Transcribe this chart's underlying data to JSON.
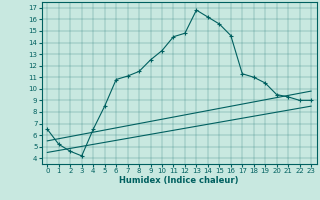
{
  "xlabel": "Humidex (Indice chaleur)",
  "background_color": "#c8e8e0",
  "line_color": "#006060",
  "xlim": [
    -0.5,
    23.5
  ],
  "ylim": [
    3.5,
    17.5
  ],
  "xticks": [
    0,
    1,
    2,
    3,
    4,
    5,
    6,
    7,
    8,
    9,
    10,
    11,
    12,
    13,
    14,
    15,
    16,
    17,
    18,
    19,
    20,
    21,
    22,
    23
  ],
  "yticks": [
    4,
    5,
    6,
    7,
    8,
    9,
    10,
    11,
    12,
    13,
    14,
    15,
    16,
    17
  ],
  "curve1_x": [
    0,
    1,
    2,
    3,
    4,
    5,
    6,
    7,
    8,
    9,
    10,
    11,
    12,
    13,
    14,
    15,
    16,
    17,
    18,
    19,
    20,
    21,
    22,
    23
  ],
  "curve1_y": [
    6.5,
    5.2,
    4.6,
    4.2,
    6.5,
    8.5,
    10.8,
    11.1,
    11.5,
    12.5,
    13.3,
    14.5,
    14.8,
    16.8,
    16.2,
    15.6,
    14.6,
    11.3,
    11.0,
    10.5,
    9.5,
    9.3,
    9.0,
    9.0
  ],
  "line2_x": [
    0,
    23
  ],
  "line2_y": [
    5.5,
    9.8
  ],
  "line3_x": [
    0,
    23
  ],
  "line3_y": [
    4.5,
    8.5
  ]
}
